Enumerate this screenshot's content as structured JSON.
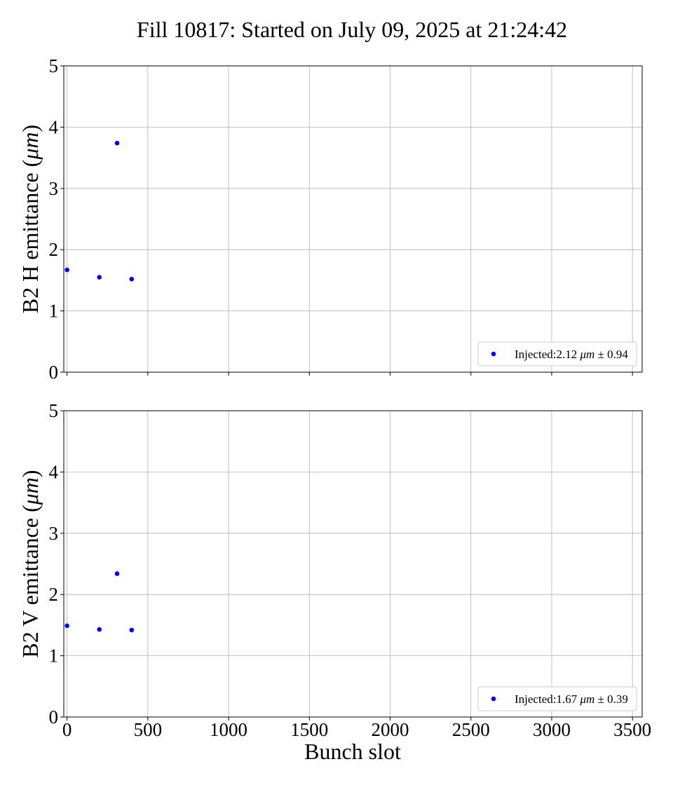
{
  "title": "Fill 10817: Started on July 09, 2025 at 21:24:42",
  "chart_data": [
    {
      "type": "scatter",
      "ylabel": "B2 H emittance (μm)",
      "ylabel_main": "B2 H emittance (",
      "ylabel_unit": "μm",
      "ylabel_close": ")",
      "xlabel": "",
      "xlim": [
        -20,
        3560
      ],
      "ylim": [
        0,
        5
      ],
      "x_ticks": [
        0,
        500,
        1000,
        1500,
        2000,
        2500,
        3000,
        3500
      ],
      "y_ticks": [
        0,
        1,
        2,
        3,
        4,
        5
      ],
      "x_tick_labels_visible": false,
      "grid": true,
      "legend_loc": "lower right",
      "series": [
        {
          "name": "Injected:2.12 μm ± 0.94",
          "legend_prefix": "Injected:2.12 ",
          "legend_unit": "μm",
          "legend_suffix": " ± 0.94",
          "color": "#0000ff",
          "x": [
            0,
            200,
            310,
            400
          ],
          "y": [
            1.67,
            1.55,
            3.74,
            1.52
          ]
        }
      ]
    },
    {
      "type": "scatter",
      "ylabel": "B2 V emittance (μm)",
      "ylabel_main": "B2 V emittance (",
      "ylabel_unit": "μm",
      "ylabel_close": ")",
      "xlabel": "Bunch slot",
      "xlim": [
        -20,
        3560
      ],
      "ylim": [
        0,
        5
      ],
      "x_ticks": [
        0,
        500,
        1000,
        1500,
        2000,
        2500,
        3000,
        3500
      ],
      "y_ticks": [
        0,
        1,
        2,
        3,
        4,
        5
      ],
      "x_tick_labels_visible": true,
      "grid": true,
      "legend_loc": "lower right",
      "series": [
        {
          "name": "Injected:1.67 μm ± 0.39",
          "legend_prefix": "Injected:1.67 ",
          "legend_unit": "μm",
          "legend_suffix": " ± 0.39",
          "color": "#0000ff",
          "x": [
            0,
            200,
            310,
            400
          ],
          "y": [
            1.49,
            1.43,
            2.34,
            1.42
          ]
        }
      ]
    }
  ]
}
